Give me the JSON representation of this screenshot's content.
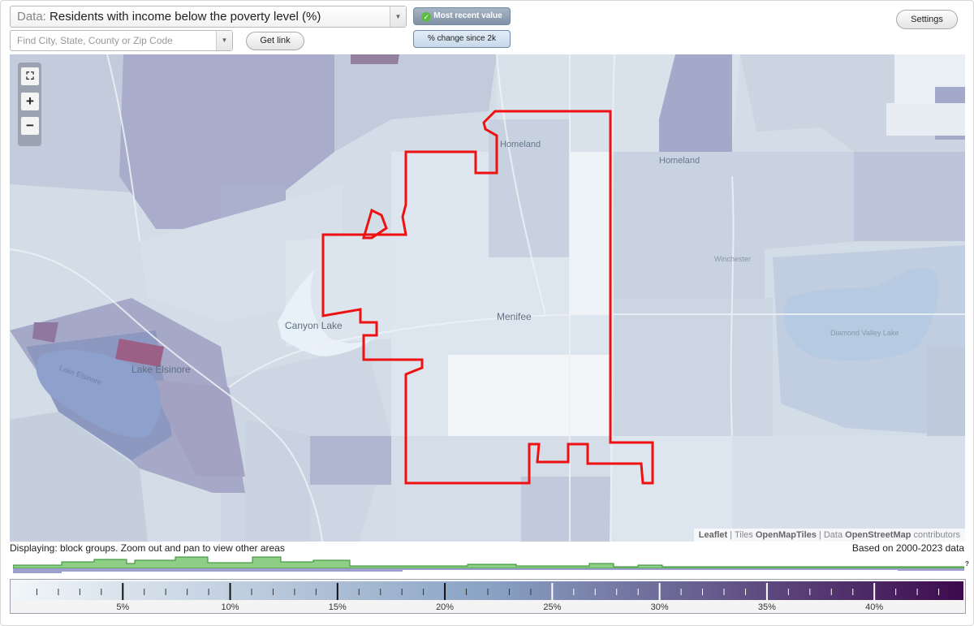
{
  "controls": {
    "data_prefix": "Data:",
    "data_value": "Residents with income below the poverty level (%)",
    "search_placeholder": "Find City, State, County or Zip Code",
    "get_link": "Get link",
    "mode_recent": "Most recent value",
    "mode_change": "% change since 2k",
    "settings": "Settings"
  },
  "map": {
    "places": {
      "homeland": "Homeland",
      "homeland_small": "Homeland",
      "winchester": "Winchester",
      "menifee": "Menifee",
      "canyon_lake": "Canyon Lake",
      "lake_elsinore": "Lake Elsinore",
      "diamond_valley_lake": "Diamond Valley Lake",
      "lake_elsinore_water": "Lake Elsinore"
    },
    "zoom": {
      "fit": "⛶",
      "in": "+",
      "out": "−"
    },
    "highlight_color": "#ee1111",
    "attribution": {
      "leaflet": "Leaflet",
      "sep1": "|",
      "tiles_prefix": "Tiles",
      "tiles": "OpenMapTiles",
      "sep2": "|",
      "data_prefix": "Data",
      "osm": "OpenStreetMap",
      "suffix": "contributors"
    }
  },
  "footer": {
    "displaying": "Displaying: block groups. Zoom out and pan to view other areas",
    "based_on": "Based on 2000-2023 data",
    "histogram_qmark": "?"
  },
  "legend": {
    "min": 0,
    "max": 44,
    "ticks": [
      "5%",
      "10%",
      "15%",
      "20%",
      "25%",
      "30%",
      "35%",
      "40%"
    ],
    "tick_values": [
      5,
      10,
      15,
      20,
      25,
      30,
      35,
      40
    ],
    "color_low": "#f1f6f9",
    "color_mid": "#8aa3c4",
    "color_high": "#3d0a4d"
  }
}
